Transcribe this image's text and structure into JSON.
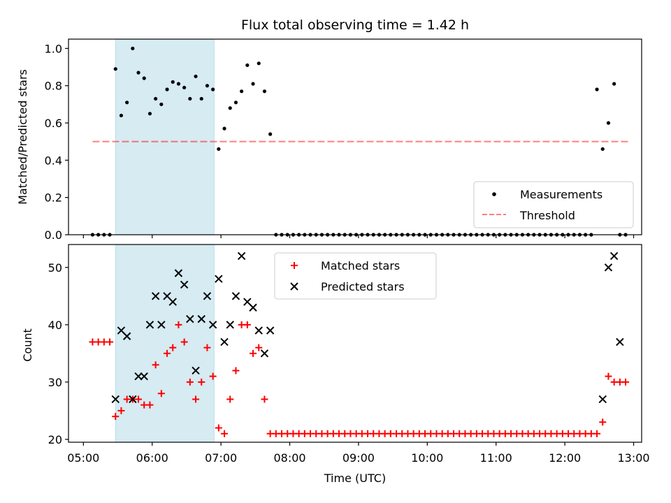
{
  "chart_data": {
    "title": "Flux total observing time = 1.42 h",
    "shaded_interval": {
      "start": "05:28",
      "end": "06:54"
    },
    "x_axis": {
      "label": "Time (UTC)",
      "range_minutes": [
        287,
        787
      ],
      "ticks": [
        {
          "value": 300,
          "label": "05:00"
        },
        {
          "value": 360,
          "label": "06:00"
        },
        {
          "value": 420,
          "label": "07:00"
        },
        {
          "value": 480,
          "label": "08:00"
        },
        {
          "value": 540,
          "label": "09:00"
        },
        {
          "value": 600,
          "label": "10:00"
        },
        {
          "value": 660,
          "label": "11:00"
        },
        {
          "value": 720,
          "label": "12:00"
        },
        {
          "value": 780,
          "label": "13:00"
        }
      ]
    },
    "panels": [
      {
        "type": "scatter",
        "ylabel": "Matched/Predicted stars",
        "ylim": [
          0,
          1.05
        ],
        "yticks": [
          {
            "value": 0.0,
            "label": "0.0"
          },
          {
            "value": 0.2,
            "label": "0.2"
          },
          {
            "value": 0.4,
            "label": "0.4"
          },
          {
            "value": 0.6,
            "label": "0.6"
          },
          {
            "value": 0.8,
            "label": "0.8"
          },
          {
            "value": 1.0,
            "label": "1.0"
          }
        ],
        "threshold": {
          "value": 0.5,
          "x_start": 308,
          "x_end": 775
        },
        "legend": {
          "position": "lower-right",
          "measurements_label": "Measurements",
          "threshold_label": "Threshold"
        },
        "series": [
          {
            "name": "Measurements",
            "x": [
              308,
              313,
              318,
              323,
              328,
              333,
              338,
              343,
              348,
              353,
              358,
              363,
              368,
              373,
              378,
              383,
              388,
              393,
              398,
              403,
              408,
              413,
              418,
              423,
              428,
              433,
              438,
              443,
              448,
              453,
              458,
              463,
              468,
              473,
              478,
              483,
              488,
              493,
              498,
              503,
              508,
              513,
              518,
              523,
              528,
              533,
              538,
              543,
              548,
              553,
              558,
              563,
              568,
              573,
              578,
              583,
              588,
              593,
              598,
              603,
              608,
              613,
              618,
              623,
              628,
              633,
              638,
              643,
              648,
              653,
              658,
              663,
              668,
              673,
              678,
              683,
              688,
              693,
              698,
              703,
              708,
              713,
              718,
              723,
              728,
              733,
              738,
              743,
              748,
              753,
              758,
              763,
              768,
              773
            ],
            "y": [
              0,
              0,
              0,
              0,
              0.89,
              0.64,
              0.71,
              1.0,
              0.87,
              0.84,
              0.65,
              0.73,
              0.7,
              0.78,
              0.82,
              0.81,
              0.79,
              0.73,
              0.85,
              0.73,
              0.8,
              0.78,
              0.46,
              0.57,
              0.68,
              0.71,
              0.77,
              0.91,
              0.81,
              0.92,
              0.77,
              0.54,
              0,
              0,
              0,
              0,
              0,
              0,
              0,
              0,
              0,
              0,
              0,
              0,
              0,
              0,
              0,
              0,
              0,
              0,
              0,
              0,
              0,
              0,
              0,
              0,
              0,
              0,
              0,
              0,
              0,
              0,
              0,
              0,
              0,
              0,
              0,
              0,
              0,
              0,
              0,
              0,
              0,
              0,
              0,
              0,
              0,
              0,
              0,
              0,
              0,
              0,
              0,
              0,
              0,
              0,
              0,
              0,
              0.78,
              0.46,
              0.6,
              0.81,
              0,
              0
            ]
          }
        ]
      },
      {
        "type": "scatter",
        "ylabel": "Count",
        "ylim": [
          19.5,
          54
        ],
        "yticks": [
          {
            "value": 20,
            "label": "20"
          },
          {
            "value": 30,
            "label": "30"
          },
          {
            "value": 40,
            "label": "40"
          },
          {
            "value": 50,
            "label": "50"
          }
        ],
        "legend": {
          "position": "upper-center",
          "matched_label": "Matched stars",
          "predicted_label": "Predicted stars"
        },
        "series": [
          {
            "name": "Matched stars",
            "color": "#ff0000",
            "x": [
              308,
              313,
              318,
              323,
              328,
              333,
              338,
              343,
              348,
              353,
              358,
              363,
              368,
              373,
              378,
              383,
              388,
              393,
              398,
              403,
              408,
              413,
              418,
              423,
              428,
              433,
              438,
              443,
              448,
              453,
              458,
              463,
              468,
              473,
              478,
              483,
              488,
              493,
              498,
              503,
              508,
              513,
              518,
              523,
              528,
              533,
              538,
              543,
              548,
              553,
              558,
              563,
              568,
              573,
              578,
              583,
              588,
              593,
              598,
              603,
              608,
              613,
              618,
              623,
              628,
              633,
              638,
              643,
              648,
              653,
              658,
              663,
              668,
              673,
              678,
              683,
              688,
              693,
              698,
              703,
              708,
              713,
              718,
              723,
              728,
              733,
              738,
              743,
              748,
              753,
              758,
              763,
              768,
              773
            ],
            "y": [
              37,
              37,
              37,
              37,
              24,
              25,
              27,
              27,
              27,
              26,
              26,
              33,
              28,
              35,
              36,
              40,
              37,
              30,
              27,
              30,
              36,
              31,
              22,
              21,
              27,
              32,
              40,
              40,
              35,
              36,
              27,
              21,
              21,
              21,
              21,
              21,
              21,
              21,
              21,
              21,
              21,
              21,
              21,
              21,
              21,
              21,
              21,
              21,
              21,
              21,
              21,
              21,
              21,
              21,
              21,
              21,
              21,
              21,
              21,
              21,
              21,
              21,
              21,
              21,
              21,
              21,
              21,
              21,
              21,
              21,
              21,
              21,
              21,
              21,
              21,
              21,
              21,
              21,
              21,
              21,
              21,
              21,
              21,
              21,
              21,
              21,
              21,
              21,
              21,
              23,
              31,
              30,
              30,
              30
            ]
          },
          {
            "name": "Predicted stars",
            "color": "#000000",
            "x": [
              328,
              333,
              338,
              343,
              348,
              353,
              358,
              363,
              368,
              373,
              378,
              383,
              388,
              393,
              398,
              403,
              408,
              413,
              418,
              423,
              428,
              433,
              438,
              443,
              448,
              453,
              458,
              463,
              753,
              758,
              763,
              768
            ],
            "y": [
              27,
              39,
              38,
              27,
              31,
              31,
              40,
              45,
              40,
              45,
              44,
              49,
              47,
              41,
              32,
              41,
              45,
              40,
              48,
              37,
              40,
              45,
              52,
              44,
              43,
              39,
              35,
              39,
              27,
              50,
              52,
              37
            ]
          }
        ]
      }
    ]
  }
}
